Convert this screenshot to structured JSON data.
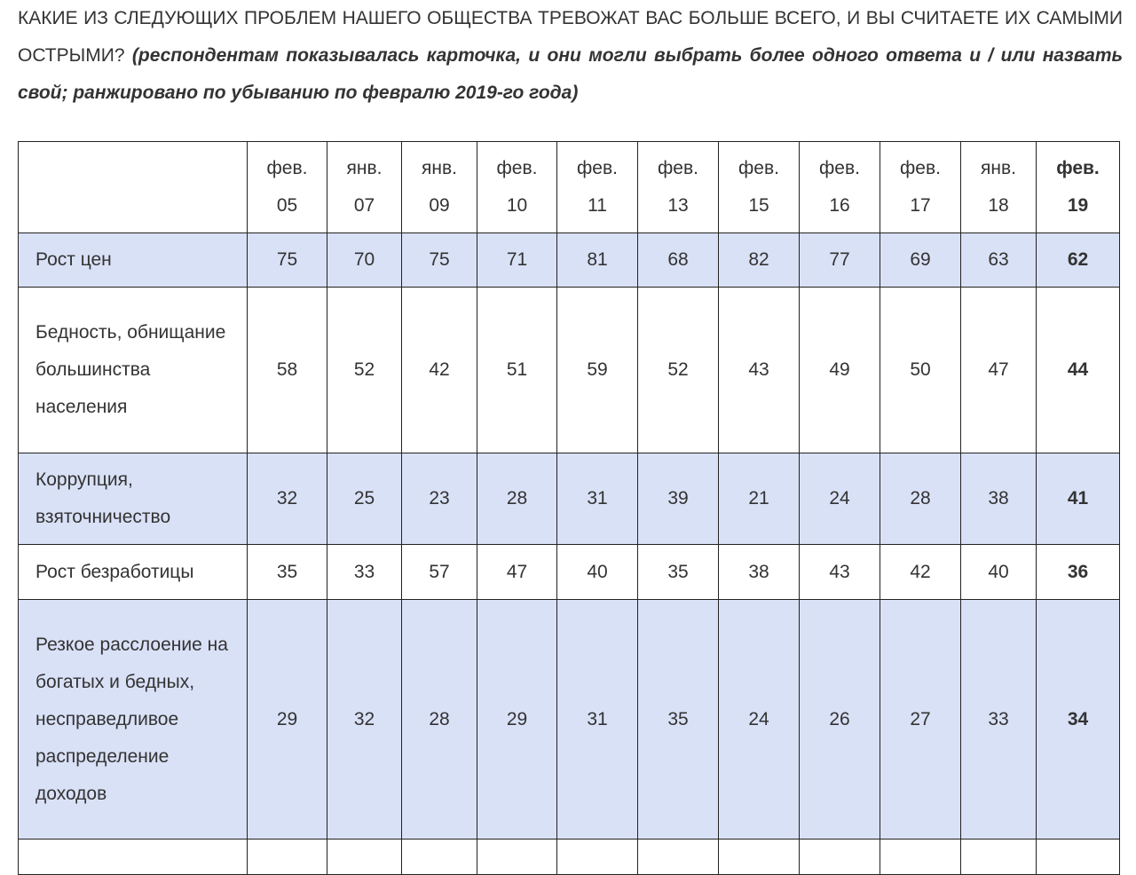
{
  "question": {
    "text": "КАКИЕ ИЗ СЛЕДУЮЩИХ ПРОБЛЕМ НАШЕГО ОБЩЕСТВА ТРЕВОЖАТ ВАС БОЛЬШЕ ВСЕГО, И ВЫ СЧИТАЕТЕ ИХ САМЫМИ ОСТРЫМИ?",
    "note": "(респондентам показывалась карточка, и они могли выбрать более одного ответа и / или назвать свой; ранжировано по убыванию по февралю 2019-го года)"
  },
  "table": {
    "columns": [
      {
        "month": "фев.",
        "year": "05"
      },
      {
        "month": "янв.",
        "year": "07"
      },
      {
        "month": "янв.",
        "year": "09"
      },
      {
        "month": "фев.",
        "year": "10"
      },
      {
        "month": "фев.",
        "year": "11"
      },
      {
        "month": "фев.",
        "year": "13"
      },
      {
        "month": "фев.",
        "year": "15"
      },
      {
        "month": "фев.",
        "year": "16"
      },
      {
        "month": "фев.",
        "year": "17"
      },
      {
        "month": "янв.",
        "year": "18"
      },
      {
        "month": "фев.",
        "year": "19"
      }
    ],
    "rows": [
      {
        "label": "Рост цен",
        "values": [
          "75",
          "70",
          "75",
          "71",
          "81",
          "68",
          "82",
          "77",
          "69",
          "63",
          "62"
        ]
      },
      {
        "label": "Бедность, обнищание большинства населения",
        "values": [
          "58",
          "52",
          "42",
          "51",
          "59",
          "52",
          "43",
          "49",
          "50",
          "47",
          "44"
        ]
      },
      {
        "label": "Коррупция, взяточничество",
        "values": [
          "32",
          "25",
          "23",
          "28",
          "31",
          "39",
          "21",
          "24",
          "28",
          "38",
          "41"
        ]
      },
      {
        "label": "Рост безработицы",
        "values": [
          "35",
          "33",
          "57",
          "47",
          "40",
          "35",
          "38",
          "43",
          "42",
          "40",
          "36"
        ]
      },
      {
        "label": "Резкое расслоение на богатых и бедных, несправедливое распределение доходов",
        "values": [
          "29",
          "32",
          "28",
          "29",
          "31",
          "35",
          "24",
          "26",
          "27",
          "33",
          "34"
        ]
      }
    ]
  },
  "colors": {
    "highlight_row": "#d9e1f7",
    "text": "#333333"
  }
}
